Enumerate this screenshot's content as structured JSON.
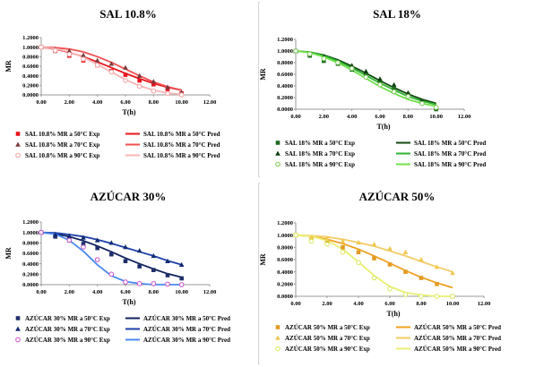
{
  "chart_data": [
    {
      "type": "scatter",
      "title": "SAL 10.8%",
      "xlabel": "T(h)",
      "ylabel": "MR",
      "xlim": [
        0,
        12
      ],
      "ylim": [
        0,
        1.2
      ],
      "xticks": [
        "0.00",
        "2.00",
        "4.00",
        "6.00",
        "8.00",
        "10.00",
        "12.00"
      ],
      "yticks": [
        "0.0000",
        "0.2000",
        "0.4000",
        "0.6000",
        "0.8000",
        "1.0000",
        "1.2000"
      ],
      "grid": false,
      "legend_position": "bottom",
      "series": [
        {
          "name": "SAL 10.8% MR a  50°C Exp",
          "kind": "exp",
          "marker": "square",
          "color": "#e8151b",
          "x": [
            0,
            1,
            2,
            3,
            4,
            5,
            6,
            7,
            8,
            9,
            10
          ],
          "y": [
            1.0,
            0.92,
            0.82,
            0.72,
            0.62,
            0.5,
            0.42,
            0.3,
            0.22,
            0.12,
            0.03
          ]
        },
        {
          "name": "SAL 10.8% MR a  70°C Exp",
          "kind": "exp",
          "marker": "triangle",
          "color": "#7a3b3b",
          "x": [
            0,
            1,
            2,
            3,
            4,
            5,
            6,
            7,
            8,
            9,
            10
          ],
          "y": [
            1.0,
            0.95,
            0.92,
            0.83,
            0.72,
            0.65,
            0.57,
            0.4,
            0.28,
            0.16,
            0.05
          ]
        },
        {
          "name": "SAL 10.8% MR a  90°C Exp",
          "kind": "exp",
          "marker": "circle",
          "color": "#f3a0a0",
          "x": [
            0,
            1,
            2,
            3,
            4,
            5,
            6,
            7,
            8,
            9,
            10
          ],
          "y": [
            1.0,
            0.93,
            0.85,
            0.75,
            0.62,
            0.48,
            0.3,
            0.18,
            0.08,
            0.03,
            0.0
          ]
        },
        {
          "name": "SAL 10.8% MR a  50°C Pred",
          "kind": "pred",
          "color": "#e8151b",
          "x": [
            0,
            1,
            2,
            3,
            4,
            5,
            6,
            7,
            8,
            9,
            10
          ],
          "y": [
            1.0,
            0.96,
            0.89,
            0.8,
            0.69,
            0.57,
            0.45,
            0.34,
            0.24,
            0.16,
            0.1
          ]
        },
        {
          "name": "SAL 10.8% MR a  70°C Pred",
          "kind": "pred",
          "color": "#f04f4f",
          "x": [
            0,
            1,
            2,
            3,
            4,
            5,
            6,
            7,
            8,
            9,
            10
          ],
          "y": [
            1.0,
            0.99,
            0.96,
            0.9,
            0.8,
            0.68,
            0.54,
            0.4,
            0.27,
            0.17,
            0.1
          ]
        },
        {
          "name": "SAL 10.8% MR a  90°C Pred",
          "kind": "pred",
          "color": "#f7b5b5",
          "x": [
            0,
            1,
            2,
            3,
            4,
            5,
            6,
            7,
            8,
            9,
            10
          ],
          "y": [
            1.0,
            0.97,
            0.9,
            0.79,
            0.64,
            0.48,
            0.32,
            0.19,
            0.1,
            0.04,
            0.01
          ]
        }
      ]
    },
    {
      "type": "scatter",
      "title": "SAL 18%",
      "xlabel": "T(h)",
      "ylabel": "MR",
      "xlim": [
        0,
        12
      ],
      "ylim": [
        0,
        1.2
      ],
      "xticks": [
        "0.00",
        "2.00",
        "4.00",
        "6.00",
        "8.00",
        "10.00",
        "12.00"
      ],
      "yticks": [
        "0.0000",
        "0.2000",
        "0.4000",
        "0.6000",
        "0.8000",
        "1.0000",
        "1.2000"
      ],
      "grid": false,
      "legend_position": "bottom",
      "series": [
        {
          "name": "SAL 18% MR a  50°C Exp",
          "kind": "exp",
          "marker": "square",
          "color": "#1f6b1f",
          "x": [
            0,
            1,
            2,
            3,
            4,
            5,
            6,
            7,
            8,
            9,
            10
          ],
          "y": [
            1.0,
            0.92,
            0.83,
            0.78,
            0.68,
            0.58,
            0.48,
            0.35,
            0.25,
            0.13,
            0.0
          ]
        },
        {
          "name": "SAL 18% MR a  70°C Exp",
          "kind": "exp",
          "marker": "triangle",
          "color": "#0f3f0f",
          "x": [
            0,
            1,
            2,
            3,
            4,
            5,
            6,
            7,
            8,
            9,
            10
          ],
          "y": [
            1.0,
            0.95,
            0.9,
            0.82,
            0.75,
            0.65,
            0.52,
            0.42,
            0.28,
            0.13,
            0.03
          ]
        },
        {
          "name": "SAL 18% MR a  90°C Exp",
          "kind": "exp",
          "marker": "circle",
          "color": "#7acb55",
          "x": [
            0,
            1,
            2,
            3,
            4,
            5,
            6,
            7,
            8,
            9,
            10
          ],
          "y": [
            1.0,
            0.95,
            0.87,
            0.8,
            0.7,
            0.55,
            0.42,
            0.3,
            0.22,
            0.1,
            0.03
          ]
        },
        {
          "name": "SAL 18% MR a  50°C Pred",
          "kind": "pred",
          "color": "#0f4a0f",
          "x": [
            0,
            1,
            2,
            3,
            4,
            5,
            6,
            7,
            8,
            9,
            10
          ],
          "y": [
            1.0,
            0.98,
            0.93,
            0.85,
            0.74,
            0.62,
            0.49,
            0.37,
            0.26,
            0.17,
            0.1
          ]
        },
        {
          "name": "SAL 18% MR a  70°C Pred",
          "kind": "pred",
          "color": "#2cb52c",
          "x": [
            0,
            1,
            2,
            3,
            4,
            5,
            6,
            7,
            8,
            9,
            10
          ],
          "y": [
            1.0,
            0.98,
            0.92,
            0.83,
            0.71,
            0.58,
            0.45,
            0.33,
            0.22,
            0.14,
            0.08
          ]
        },
        {
          "name": "SAL 18% MR a  90°C Pred",
          "kind": "pred",
          "color": "#6fe04a",
          "x": [
            0,
            1,
            2,
            3,
            4,
            5,
            6,
            7,
            8,
            9,
            10
          ],
          "y": [
            1.0,
            0.97,
            0.9,
            0.8,
            0.67,
            0.53,
            0.39,
            0.27,
            0.17,
            0.1,
            0.05
          ]
        }
      ]
    },
    {
      "type": "scatter",
      "title": "AZÚCAR 30%",
      "xlabel": "T(h)",
      "ylabel": "MR",
      "xlim": [
        0,
        12
      ],
      "ylim": [
        0,
        1.2
      ],
      "xticks": [
        "0.00",
        "2.00",
        "4.00",
        "6.00",
        "8.00",
        "10.00",
        "12.00"
      ],
      "yticks": [
        "0.0000",
        "0.2000",
        "0.4000",
        "0.6000",
        "0.8000",
        "1.0000",
        "1.2000"
      ],
      "grid": false,
      "legend_position": "bottom",
      "series": [
        {
          "name": "AZÚCAR 30% MR a  50°C Exp",
          "kind": "exp",
          "marker": "square",
          "color": "#1f2f6b",
          "x": [
            0,
            1,
            2,
            3,
            4,
            5,
            6,
            7,
            8,
            9,
            10
          ],
          "y": [
            1.0,
            0.92,
            0.85,
            0.78,
            0.7,
            0.58,
            0.45,
            0.35,
            0.28,
            0.18,
            0.12
          ]
        },
        {
          "name": "AZÚCAR 30% MR a  70°C Exp",
          "kind": "exp",
          "marker": "triangle",
          "color": "#0f2870",
          "x": [
            0,
            1,
            2,
            3,
            4,
            5,
            6,
            7,
            8,
            9,
            10
          ],
          "y": [
            1.0,
            0.96,
            0.93,
            0.9,
            0.85,
            0.8,
            0.72,
            0.65,
            0.55,
            0.45,
            0.38
          ]
        },
        {
          "name": "AZÚCAR 30% MR a  90°C Exp",
          "kind": "exp",
          "marker": "circle",
          "color": "#c94fc9",
          "x": [
            0,
            2,
            3,
            4,
            5,
            6,
            7,
            8,
            9,
            10
          ],
          "y": [
            1.0,
            0.85,
            0.72,
            0.48,
            0.2,
            0.05,
            0.02,
            0.02,
            0.01,
            0.0
          ]
        },
        {
          "name": "AZÚCAR 30% MR a  50°C Pred",
          "kind": "pred",
          "color": "#10225e",
          "x": [
            0,
            1,
            2,
            3,
            4,
            5,
            6,
            7,
            8,
            9,
            10
          ],
          "y": [
            1.0,
            0.97,
            0.92,
            0.84,
            0.74,
            0.63,
            0.51,
            0.4,
            0.3,
            0.21,
            0.14
          ]
        },
        {
          "name": "AZÚCAR 30% MR a  70°C Pred",
          "kind": "pred",
          "color": "#1c3fa8",
          "x": [
            0,
            1,
            2,
            3,
            4,
            5,
            6,
            7,
            8,
            9,
            10
          ],
          "y": [
            1.0,
            0.99,
            0.96,
            0.92,
            0.86,
            0.79,
            0.71,
            0.63,
            0.55,
            0.46,
            0.38
          ]
        },
        {
          "name": "AZÚCAR 30% MR a  90°C Pred",
          "kind": "pred",
          "color": "#4a8af0",
          "x": [
            0,
            1,
            2,
            3,
            4,
            5,
            6,
            7,
            8,
            9,
            10
          ],
          "y": [
            1.0,
            0.97,
            0.85,
            0.64,
            0.38,
            0.17,
            0.06,
            0.02,
            0.0,
            0.0,
            0.0
          ]
        }
      ]
    },
    {
      "type": "scatter",
      "title": "AZÚCAR 50%",
      "xlabel": "T(h)",
      "ylabel": "MR",
      "xlim": [
        0,
        12
      ],
      "ylim": [
        0,
        1.2
      ],
      "xticks": [
        "0.00",
        "2.00",
        "4.00",
        "6.00",
        "8.00",
        "10.00",
        "12.00"
      ],
      "yticks": [
        "0.0000",
        "0.2000",
        "0.4000",
        "0.6000",
        "0.8000",
        "1.0000",
        "1.2000"
      ],
      "grid": false,
      "legend_position": "bottom",
      "series": [
        {
          "name": "AZÚCAR 50% MR a  50°C Exp",
          "kind": "exp",
          "marker": "square",
          "color": "#e39b22",
          "x": [
            0,
            1,
            2,
            3,
            4,
            5,
            6,
            7,
            8,
            9,
            10
          ],
          "y": [
            1.0,
            0.93,
            0.87,
            0.8,
            0.72,
            0.62,
            0.52,
            0.4,
            0.3,
            0.2,
            0.0
          ]
        },
        {
          "name": "AZÚCAR 50% MR a  70°C Exp",
          "kind": "exp",
          "marker": "triangle",
          "color": "#f0c850",
          "x": [
            0,
            1,
            2,
            3,
            4,
            5,
            6,
            7,
            8,
            9,
            10
          ],
          "y": [
            1.0,
            0.96,
            0.95,
            0.9,
            0.88,
            0.85,
            0.78,
            0.72,
            0.6,
            0.48,
            0.38
          ]
        },
        {
          "name": "AZÚCAR 50% MR a  90°C Exp",
          "kind": "exp",
          "marker": "circle",
          "color": "#d8e85a",
          "x": [
            0,
            1,
            2,
            3,
            4,
            5,
            6,
            7,
            8,
            9,
            10
          ],
          "y": [
            1.0,
            0.9,
            0.85,
            0.72,
            0.55,
            0.3,
            0.12,
            0.03,
            0.0,
            0.0,
            0.0
          ]
        },
        {
          "name": "AZÚCAR 50% MR a  50°C Pred",
          "kind": "pred",
          "color": "#f0a020",
          "x": [
            0,
            1,
            2,
            3,
            4,
            5,
            6,
            7,
            8,
            9,
            10
          ],
          "y": [
            1.0,
            0.98,
            0.93,
            0.86,
            0.77,
            0.66,
            0.54,
            0.42,
            0.31,
            0.22,
            0.14
          ]
        },
        {
          "name": "AZÚCAR 50% MR a  70°C Pred",
          "kind": "pred",
          "color": "#f3cc66",
          "x": [
            0,
            1,
            2,
            3,
            4,
            5,
            6,
            7,
            8,
            9,
            10
          ],
          "y": [
            1.0,
            0.99,
            0.97,
            0.93,
            0.88,
            0.82,
            0.74,
            0.66,
            0.57,
            0.48,
            0.4
          ]
        },
        {
          "name": "AZÚCAR 50% MR a  90°C Pred",
          "kind": "pred",
          "color": "#e8ee70",
          "x": [
            0,
            1,
            2,
            3,
            4,
            5,
            6,
            7,
            8,
            9,
            10
          ],
          "y": [
            1.0,
            0.98,
            0.91,
            0.77,
            0.56,
            0.34,
            0.16,
            0.06,
            0.02,
            0.0,
            0.0
          ]
        }
      ]
    }
  ]
}
